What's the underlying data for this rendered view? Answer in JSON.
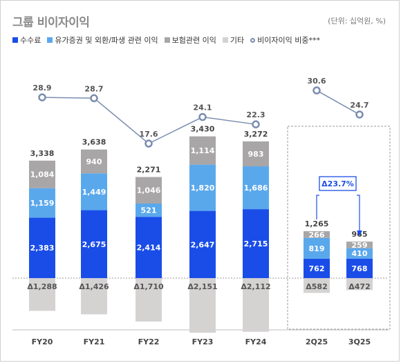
{
  "title": "그룹 비이자이익",
  "unit_note": "(단위: 십억원, %)",
  "legend": [
    {
      "label": "수수료",
      "color": "#1a4de8",
      "kind": "square"
    },
    {
      "label": "유가증권 및 외환/파생 관련 이익",
      "color": "#5aa8ec",
      "kind": "square"
    },
    {
      "label": "보험관련 이익",
      "color": "#a8a6a7",
      "kind": "square"
    },
    {
      "label": "기타",
      "color": "#d5d2d2",
      "kind": "square"
    },
    {
      "label": "비이자이익 비중***",
      "color": "#7a8db0",
      "kind": "circle"
    }
  ],
  "chart_data": {
    "type": "bar",
    "stacked": true,
    "categories": [
      "FY20",
      "FY21",
      "FY22",
      "FY23",
      "FY24",
      "2Q25",
      "3Q25"
    ],
    "series": [
      {
        "name": "수수료",
        "color": "#1a4de8",
        "values": [
          2383,
          2675,
          2414,
          2647,
          2715,
          762,
          768
        ]
      },
      {
        "name": "유가증권 및 외환/파생 관련 이익",
        "color": "#5aa8ec",
        "values": [
          1159,
          1449,
          521,
          1820,
          1686,
          819,
          410
        ]
      },
      {
        "name": "보험관련 이익",
        "color": "#a8a6a7",
        "values": [
          1084,
          940,
          1046,
          1114,
          983,
          266,
          259
        ]
      },
      {
        "name": "기타",
        "color": "#d5d2d2",
        "values": [
          -1288,
          -1426,
          -1710,
          -2151,
          -2112,
          -582,
          -472
        ]
      }
    ],
    "negative_labels": [
      "Δ1,288",
      "Δ1,426",
      "Δ1,710",
      "Δ2,151",
      "Δ2,112",
      "Δ582",
      "Δ472"
    ],
    "totals": [
      "3,338",
      "3,638",
      "2,271",
      "3,430",
      "3,272",
      "1,265",
      "965"
    ],
    "ratio_series": {
      "name": "비이자이익 비중***",
      "color": "#7a8db0",
      "values": [
        28.9,
        28.7,
        17.6,
        24.1,
        22.3,
        30.6,
        24.7
      ]
    },
    "annotation": {
      "label": "Δ23.7%",
      "from": "2Q25",
      "to": "3Q25"
    },
    "groups": [
      [
        "FY20",
        "FY21",
        "FY22",
        "FY23",
        "FY24"
      ],
      [
        "2Q25",
        "3Q25"
      ]
    ]
  }
}
